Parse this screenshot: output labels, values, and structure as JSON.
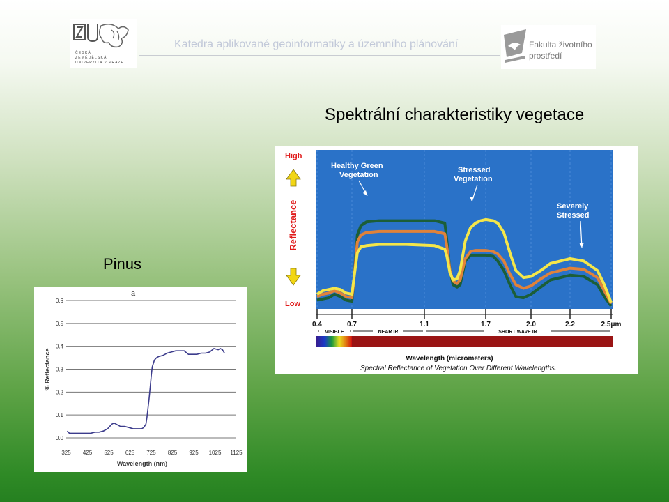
{
  "header": {
    "department": "Katedra aplikované geoinformatiky a územního plánování",
    "left_logo": {
      "icon": "czu-university-logo",
      "lines": [
        "ČESKÁ",
        "ZEMĚDĚLSKÁ",
        "UNIVERZITA V PRAZE"
      ]
    },
    "right_logo": {
      "icon": "faculty-bird-logo",
      "line1": "Fakulta životního",
      "line2": "prostředí"
    }
  },
  "slide": {
    "title": "Spektrální charakteristiky vegetace",
    "pinus_label": "Pinus"
  },
  "chart_data": [
    {
      "type": "line",
      "panel_label": "a",
      "xlabel": "Wavelength (nm)",
      "ylabel": "% Reflectance",
      "xlim": [
        325,
        1125
      ],
      "ylim": [
        0.0,
        0.6
      ],
      "x_ticks": [
        "325",
        "425",
        "525",
        "625",
        "725",
        "825",
        "925",
        "1025",
        "1125"
      ],
      "y_ticks": [
        "0.0",
        "0.1",
        "0.2",
        "0.3",
        "0.4",
        "0.5",
        "0.6"
      ],
      "grid": "horizontal",
      "series": [
        {
          "color": "#3c3c8c",
          "x": [
            330,
            340,
            360,
            380,
            400,
            420,
            440,
            460,
            480,
            500,
            510,
            520,
            530,
            540,
            550,
            560,
            570,
            580,
            600,
            620,
            640,
            660,
            680,
            690,
            700,
            705,
            710,
            715,
            720,
            725,
            730,
            740,
            750,
            760,
            780,
            800,
            820,
            840,
            860,
            880,
            900,
            920,
            940,
            960,
            980,
            1000,
            1020,
            1040,
            1050,
            1060,
            1070
          ],
          "y": [
            0.03,
            0.02,
            0.02,
            0.02,
            0.02,
            0.02,
            0.02,
            0.025,
            0.025,
            0.03,
            0.035,
            0.04,
            0.05,
            0.06,
            0.065,
            0.06,
            0.055,
            0.05,
            0.05,
            0.045,
            0.04,
            0.04,
            0.04,
            0.045,
            0.06,
            0.09,
            0.13,
            0.17,
            0.22,
            0.27,
            0.31,
            0.34,
            0.35,
            0.355,
            0.36,
            0.37,
            0.375,
            0.38,
            0.38,
            0.38,
            0.365,
            0.365,
            0.365,
            0.37,
            0.37,
            0.375,
            0.39,
            0.385,
            0.39,
            0.385,
            0.37
          ]
        }
      ]
    },
    {
      "type": "line",
      "caption": "Spectral Reflectance of Vegetation Over Different Wavelengths.",
      "xlabel": "Wavelength (micrometers)",
      "ylabel": "Reflectance",
      "y_high_label": "High",
      "y_low_label": "Low",
      "x_ticks": [
        "0.4",
        "0.7",
        "1.1",
        "1.7",
        "2.0",
        "2.2",
        "2.5μm"
      ],
      "regions": [
        "VISIBLE",
        "NEAR IR",
        "SHORT WAVE IR"
      ],
      "background": "#2a72c8",
      "series": [
        {
          "name": "Healthy Green Vegetation",
          "color": "#1b5e38",
          "x": [
            0.4,
            0.45,
            0.5,
            0.55,
            0.6,
            0.65,
            0.7,
            0.71,
            0.73,
            0.75,
            0.78,
            0.85,
            1.0,
            1.2,
            1.3,
            1.32,
            1.35,
            1.38,
            1.42,
            1.45,
            1.5,
            1.55,
            1.6,
            1.65,
            1.7,
            1.75,
            1.78,
            1.82,
            1.86,
            1.9,
            1.95,
            2.0,
            2.05,
            2.1,
            2.2,
            2.3,
            2.4,
            2.45,
            2.5
          ],
          "y": [
            0.05,
            0.06,
            0.07,
            0.1,
            0.08,
            0.05,
            0.04,
            0.2,
            0.6,
            0.68,
            0.71,
            0.72,
            0.72,
            0.72,
            0.7,
            0.55,
            0.3,
            0.18,
            0.16,
            0.18,
            0.38,
            0.43,
            0.43,
            0.43,
            0.43,
            0.42,
            0.38,
            0.3,
            0.18,
            0.08,
            0.07,
            0.1,
            0.16,
            0.22,
            0.26,
            0.25,
            0.18,
            0.08,
            0.0
          ]
        },
        {
          "name": "",
          "color": "#e0823a",
          "x": [
            0.4,
            0.45,
            0.5,
            0.55,
            0.6,
            0.65,
            0.7,
            0.71,
            0.73,
            0.75,
            0.78,
            0.85,
            1.0,
            1.2,
            1.3,
            1.32,
            1.35,
            1.38,
            1.42,
            1.45,
            1.5,
            1.55,
            1.6,
            1.65,
            1.7,
            1.75,
            1.78,
            1.82,
            1.86,
            1.9,
            1.95,
            2.0,
            2.05,
            2.1,
            2.2,
            2.3,
            2.4,
            2.45,
            2.5
          ],
          "y": [
            0.08,
            0.1,
            0.11,
            0.13,
            0.11,
            0.08,
            0.07,
            0.2,
            0.54,
            0.6,
            0.62,
            0.63,
            0.63,
            0.63,
            0.61,
            0.5,
            0.3,
            0.21,
            0.19,
            0.22,
            0.4,
            0.46,
            0.47,
            0.47,
            0.47,
            0.46,
            0.44,
            0.38,
            0.27,
            0.18,
            0.15,
            0.17,
            0.23,
            0.28,
            0.32,
            0.31,
            0.24,
            0.13,
            0.02
          ]
        },
        {
          "name": "Stressed Vegetation",
          "color": "#f4e64a",
          "x": [
            0.4,
            0.45,
            0.5,
            0.55,
            0.6,
            0.65,
            0.7,
            0.71,
            0.73,
            0.75,
            0.78,
            0.85,
            1.0,
            1.2,
            1.3,
            1.32,
            1.35,
            1.38,
            1.42,
            1.45,
            1.5,
            1.55,
            1.6,
            1.65,
            1.7,
            1.75,
            1.78,
            1.82,
            1.86,
            1.9,
            1.95,
            2.0,
            2.05,
            2.1,
            2.2,
            2.3,
            2.4,
            2.45,
            2.5
          ],
          "y": [
            0.1,
            0.13,
            0.14,
            0.15,
            0.14,
            0.11,
            0.1,
            0.22,
            0.45,
            0.5,
            0.51,
            0.52,
            0.52,
            0.51,
            0.48,
            0.42,
            0.28,
            0.22,
            0.23,
            0.3,
            0.55,
            0.66,
            0.7,
            0.72,
            0.73,
            0.72,
            0.7,
            0.62,
            0.45,
            0.3,
            0.24,
            0.25,
            0.3,
            0.36,
            0.4,
            0.38,
            0.3,
            0.18,
            0.03
          ]
        }
      ],
      "annotations": [
        "Healthy Green Vegetation",
        "Stressed Vegetation",
        "Severely Stressed"
      ]
    }
  ]
}
